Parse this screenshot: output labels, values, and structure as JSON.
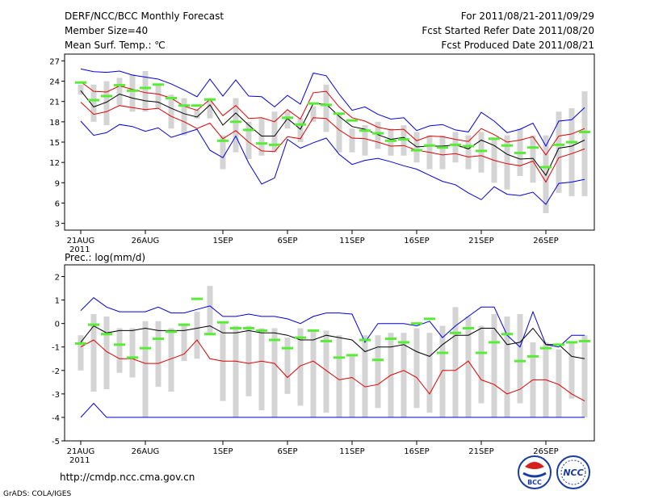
{
  "header": {
    "title": "DERF/NCC/BCC Monthly Forecast",
    "member": "Member Size=40",
    "variable": "Mean Surf. Temp.: ℃",
    "period": "For 2011/08/21-2011/09/29",
    "started": "Fcst Started Refer Date 2011/08/20",
    "produced": "Fcst Produced Date 2011/08/21"
  },
  "footer": {
    "url": "http://cmdp.ncc.cma.gov.cn",
    "grads": "GrADS: COLA/IGES",
    "logo_bcc": "BCC",
    "logo_ncc": "NCC"
  },
  "x_ticks": [
    {
      "day": 0,
      "label": "21AUG",
      "sub": "2011"
    },
    {
      "day": 5,
      "label": "26AUG"
    },
    {
      "day": 11,
      "label": "1SEP"
    },
    {
      "day": 16,
      "label": "6SEP"
    },
    {
      "day": 21,
      "label": "11SEP"
    },
    {
      "day": 26,
      "label": "16SEP"
    },
    {
      "day": 31,
      "label": "21SEP"
    },
    {
      "day": 36,
      "label": "26SEP"
    }
  ],
  "colors": {
    "max": "#0000dd",
    "pct": "#dd0000",
    "mean": "#000000",
    "box": "#d4d4d4",
    "obs": "#55ee33"
  },
  "chart_data": [
    {
      "type": "line",
      "title": "Mean Surf. Temp.: ℃",
      "ylim": [
        2,
        28
      ],
      "yticks": [
        3,
        6,
        9,
        12,
        15,
        18,
        21,
        24,
        27
      ],
      "x": [
        0,
        1,
        2,
        3,
        4,
        5,
        6,
        7,
        8,
        9,
        10,
        11,
        12,
        13,
        14,
        15,
        16,
        17,
        18,
        19,
        20,
        21,
        22,
        23,
        24,
        25,
        26,
        27,
        28,
        29,
        30,
        31,
        32,
        33,
        34,
        35,
        36,
        37,
        38,
        39
      ],
      "series": [
        {
          "name": "max",
          "values": [
            25.8,
            25.4,
            25.3,
            25.5,
            24.9,
            24.6,
            24.3,
            23.6,
            22.7,
            21.7,
            24.3,
            21.8,
            24.2,
            21.8,
            21.7,
            20.2,
            21.9,
            20.6,
            25.2,
            24.8,
            22.1,
            19.7,
            20.2,
            19.1,
            18.4,
            18.6,
            16.7,
            17.4,
            17.6,
            16.8,
            16.5,
            19.4,
            18.1,
            16.4,
            16.9,
            17.8,
            14.4,
            18.1,
            18.3,
            20.1
          ]
        },
        {
          "name": "p90",
          "values": [
            23.9,
            22.5,
            22.4,
            23.3,
            22.8,
            22.3,
            22.1,
            21.5,
            20.3,
            19.7,
            21.3,
            18.9,
            20.4,
            18.5,
            18.6,
            18.0,
            19.8,
            18.4,
            22.3,
            22.5,
            20.2,
            18.6,
            18.1,
            17.2,
            16.8,
            16.9,
            15.2,
            15.9,
            15.8,
            15.4,
            15.1,
            17.0,
            16.1,
            15.0,
            15.3,
            15.8,
            13.1,
            15.9,
            16.2,
            17.0
          ]
        },
        {
          "name": "mean",
          "values": [
            22.6,
            20.2,
            20.9,
            22.1,
            21.5,
            21.1,
            20.9,
            20.0,
            19.2,
            18.7,
            20.5,
            17.5,
            19.3,
            17.5,
            15.9,
            15.9,
            18.5,
            16.9,
            20.7,
            20.6,
            18.8,
            17.3,
            16.9,
            16.1,
            15.4,
            15.7,
            14.3,
            14.4,
            14.4,
            14.6,
            14.0,
            15.3,
            14.5,
            13.2,
            12.5,
            12.6,
            10.1,
            14.1,
            14.4,
            15.3
          ]
        },
        {
          "name": "p10",
          "values": [
            20.9,
            19.1,
            19.5,
            20.4,
            20.1,
            19.8,
            20.0,
            18.8,
            18.0,
            17.0,
            17.8,
            15.5,
            16.7,
            15.0,
            13.7,
            13.6,
            15.8,
            15.5,
            18.6,
            18.5,
            16.8,
            15.6,
            15.5,
            15.0,
            14.4,
            14.5,
            13.8,
            13.5,
            13.1,
            13.3,
            12.8,
            13.0,
            12.3,
            11.8,
            11.5,
            12.2,
            9.1,
            12.7,
            13.3,
            14.0
          ]
        },
        {
          "name": "min",
          "values": [
            18.1,
            16.0,
            16.4,
            17.6,
            17.3,
            16.6,
            17.1,
            15.7,
            16.3,
            16.9,
            13.8,
            12.7,
            15.9,
            11.9,
            8.8,
            9.7,
            15.4,
            14.1,
            14.9,
            15.6,
            13.2,
            11.7,
            12.3,
            12.6,
            12.1,
            11.5,
            11.0,
            10.1,
            9.2,
            8.7,
            7.5,
            6.5,
            8.4,
            7.3,
            7.1,
            7.6,
            5.8,
            8.9,
            9.1,
            9.5
          ]
        },
        {
          "name": "box_upper",
          "values": [
            23.5,
            23.5,
            24.0,
            24.5,
            25.0,
            25.5,
            23.5,
            22.0,
            21.5,
            19.8,
            21.5,
            16.0,
            21.5,
            18.0,
            18.5,
            19.5,
            19.5,
            18.5,
            20.3,
            23.5,
            19.0,
            17.0,
            17.5,
            18.0,
            17.0,
            17.5,
            16.5,
            16.0,
            16.0,
            16.5,
            16.0,
            16.5,
            15.5,
            16.0,
            17.0,
            16.0,
            16.0,
            19.5,
            20.0,
            22.5
          ]
        },
        {
          "name": "box_lower",
          "values": [
            22.0,
            18.0,
            17.5,
            20.5,
            19.5,
            19.5,
            20.0,
            17.0,
            16.0,
            18.5,
            18.5,
            11.0,
            13.5,
            12.5,
            13.0,
            13.5,
            17.0,
            15.0,
            18.0,
            16.5,
            13.5,
            13.5,
            13.0,
            14.0,
            13.0,
            13.0,
            12.0,
            11.0,
            11.0,
            12.0,
            11.0,
            10.5,
            9.0,
            8.0,
            10.0,
            9.0,
            4.5,
            7.5,
            7.0,
            7.0
          ]
        },
        {
          "name": "observed",
          "values": [
            23.8,
            21.2,
            21.8,
            23.4,
            22.6,
            23.0,
            23.5,
            21.5,
            20.4,
            20.4,
            21.3,
            15.2,
            18.0,
            16.8,
            14.8,
            14.6,
            18.6,
            17.6,
            20.7,
            20.5,
            19.2,
            18.2,
            16.7,
            16.3,
            15.2,
            15.4,
            13.8,
            14.5,
            14.2,
            14.6,
            14.4,
            13.7,
            15.5,
            14.5,
            13.4,
            14.2,
            11.3,
            14.6,
            15.0,
            16.5
          ]
        }
      ]
    },
    {
      "type": "line",
      "title": "Prec.: log(mm/d)",
      "ylim": [
        -5,
        2.5
      ],
      "yticks": [
        -5,
        -4,
        -3,
        -2,
        -1,
        0,
        1,
        2
      ],
      "x": [
        0,
        1,
        2,
        3,
        4,
        5,
        6,
        7,
        8,
        9,
        10,
        11,
        12,
        13,
        14,
        15,
        16,
        17,
        18,
        19,
        20,
        21,
        22,
        23,
        24,
        25,
        26,
        27,
        28,
        29,
        30,
        31,
        32,
        33,
        34,
        35,
        36,
        37,
        38,
        39
      ],
      "series": [
        {
          "name": "max",
          "values": [
            0.55,
            1.1,
            0.7,
            0.5,
            0.5,
            0.5,
            0.7,
            0.45,
            0.45,
            0.6,
            0.75,
            0.3,
            0.3,
            0.4,
            0.3,
            0.3,
            0.2,
            0.0,
            0.3,
            0.45,
            0.45,
            0.4,
            -0.8,
            0.0,
            0.0,
            0.0,
            -0.1,
            0.1,
            -0.6,
            -0.1,
            0.3,
            0.7,
            0.7,
            -0.5,
            -1.0,
            0.5,
            -0.9,
            -1.0,
            -0.5,
            -0.5
          ]
        },
        {
          "name": "mean",
          "values": [
            -0.8,
            -0.1,
            -0.4,
            -0.3,
            -0.3,
            -0.2,
            -0.3,
            -0.3,
            -0.3,
            -0.2,
            -0.1,
            -0.4,
            -0.4,
            -0.3,
            -0.4,
            -0.4,
            -0.5,
            -0.7,
            -0.7,
            -0.5,
            -0.6,
            -0.7,
            -1.2,
            -1.0,
            -1.0,
            -0.9,
            -1.2,
            -1.4,
            -0.9,
            -0.5,
            -0.5,
            -0.2,
            -0.2,
            -0.9,
            -0.8,
            -0.2,
            -0.9,
            -0.9,
            -1.4,
            -1.5
          ]
        },
        {
          "name": "min",
          "values": [
            -4.0,
            -3.4,
            -4.0,
            -4.0,
            -4.0,
            -4.0,
            -4.0,
            -4.0,
            -4.0,
            -4.0,
            -4.0,
            -4.0,
            -4.0,
            -4.0,
            -4.0,
            -4.0,
            -4.0,
            -4.0,
            -4.0,
            -4.0,
            -4.0,
            -4.0,
            -4.0,
            -4.0,
            -4.0,
            -4.0,
            -4.0,
            -4.0,
            -4.0,
            -4.0,
            -4.0,
            -4.0,
            -4.0,
            -4.0,
            -4.0,
            -4.0,
            -4.0,
            -4.0,
            -4.0,
            -4.0
          ]
        },
        {
          "name": "p10",
          "values": [
            -1.0,
            -0.7,
            -1.2,
            -1.5,
            -1.5,
            -1.7,
            -1.7,
            -1.5,
            -1.3,
            -0.7,
            -1.5,
            -1.6,
            -1.6,
            -1.7,
            -1.6,
            -1.7,
            -2.3,
            -1.8,
            -1.6,
            -2.0,
            -2.4,
            -2.3,
            -2.7,
            -2.6,
            -2.2,
            -2.0,
            -2.3,
            -3.0,
            -2.0,
            -2.0,
            -1.6,
            -2.4,
            -2.6,
            -3.0,
            -2.8,
            -2.4,
            -2.4,
            -2.6,
            -3.0,
            -3.3
          ]
        },
        {
          "name": "box_upper",
          "values": [
            -0.5,
            0.4,
            0.3,
            -0.2,
            -0.2,
            0.1,
            0.1,
            -0.2,
            0.0,
            0.5,
            1.6,
            0.0,
            -0.1,
            -0.1,
            -0.2,
            -0.2,
            -0.6,
            -0.2,
            -0.3,
            -0.3,
            -0.5,
            -1.3,
            -0.5,
            -0.5,
            -0.4,
            -0.4,
            -0.2,
            -0.4,
            -0.1,
            0.7,
            0.3,
            -0.1,
            0.4,
            0.3,
            0.4,
            -0.8,
            -0.8,
            -1.1,
            -0.8,
            -0.5
          ]
        },
        {
          "name": "box_lower",
          "values": [
            -2.0,
            -2.9,
            -2.8,
            -2.1,
            -2.3,
            -4.0,
            -2.7,
            -2.9,
            -1.6,
            -1.5,
            -0.5,
            -3.3,
            -4.0,
            -3.1,
            -3.7,
            -4.0,
            -3.0,
            -3.5,
            -4.0,
            -3.8,
            -4.0,
            -4.0,
            -4.0,
            -3.6,
            -4.0,
            -4.0,
            -3.6,
            -3.8,
            -4.0,
            -4.0,
            -4.0,
            -3.4,
            -4.0,
            -4.0,
            -3.4,
            -4.0,
            -4.0,
            -4.0,
            -3.2,
            -4.0
          ]
        },
        {
          "name": "observed",
          "values": [
            -0.85,
            -0.05,
            -0.45,
            -0.9,
            -1.45,
            -1.05,
            -0.65,
            -0.35,
            -0.05,
            1.05,
            -0.45,
            0.05,
            -0.2,
            -0.2,
            -0.3,
            -0.7,
            -1.05,
            -0.6,
            -0.3,
            -0.75,
            -1.45,
            -1.35,
            -0.7,
            -1.55,
            -0.65,
            -0.8,
            0.0,
            0.2,
            -1.25,
            -0.4,
            -0.2,
            -1.25,
            -0.8,
            -0.45,
            -1.6,
            -1.4,
            -1.05,
            -0.9,
            -0.8,
            -0.75
          ]
        }
      ]
    }
  ]
}
